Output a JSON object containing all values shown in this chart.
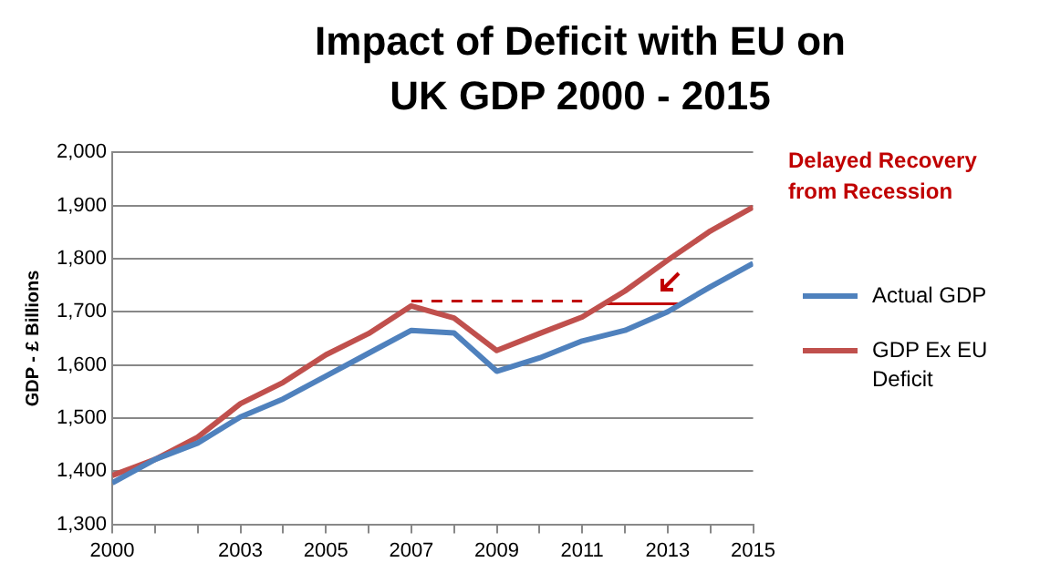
{
  "chart_data": {
    "type": "line",
    "title": "Impact of Deficit with EU on UK GDP 2000 - 2015",
    "ylabel": "GDP - £ Billions",
    "x": [
      2000,
      2001,
      2002,
      2003,
      2004,
      2005,
      2006,
      2007,
      2008,
      2009,
      2010,
      2011,
      2012,
      2013,
      2014,
      2015
    ],
    "series": [
      {
        "name": "Actual GDP",
        "color": "#4f81bd",
        "values": [
          1378,
          1422,
          1453,
          1502,
          1536,
          1579,
          1622,
          1665,
          1660,
          1588,
          1613,
          1645,
          1665,
          1700,
          1747,
          1791
        ]
      },
      {
        "name": "GDP Ex EU Deficit",
        "color": "#c0504d",
        "values": [
          1392,
          1422,
          1464,
          1527,
          1567,
          1619,
          1659,
          1711,
          1688,
          1627,
          1659,
          1690,
          1739,
          1797,
          1852,
          1897
        ]
      },
      {
        "color": "#c00000",
        "x": [
          2007,
          2011
        ],
        "values": [
          1720,
          1720
        ],
        "line_style": "dashed"
      },
      {
        "color": "#c00000",
        "x": [
          2011.5,
          2013.3
        ],
        "values": [
          1715,
          1715
        ],
        "line_style": "solid"
      }
    ],
    "xlim": [
      2000,
      2015
    ],
    "xticks": [
      2000,
      {
        "value": 2001,
        "label": null
      },
      {
        "value": 2002,
        "label": null
      },
      2003,
      {
        "value": 2004,
        "label": null
      },
      2005,
      {
        "value": 2006,
        "label": null
      },
      2007,
      {
        "value": 2008,
        "label": null
      },
      2009,
      {
        "value": 2010,
        "label": null
      },
      2011,
      {
        "value": 2012,
        "label": null
      },
      2013,
      {
        "value": 2014,
        "label": null
      },
      2015
    ],
    "ylim": [
      1300,
      2000
    ],
    "yticks": [
      {
        "value": 1300,
        "label": "1,300"
      },
      {
        "value": 1400,
        "label": "1,400"
      },
      {
        "value": 1500,
        "label": "1,500"
      },
      {
        "value": 1600,
        "label": "1,600"
      },
      {
        "value": 1700,
        "label": "1,700"
      },
      {
        "value": 1800,
        "label": "1,800"
      },
      {
        "value": 1900,
        "label": "1,900"
      },
      {
        "value": 2000,
        "label": "2,000"
      }
    ],
    "grid": "y",
    "legend": "right",
    "marker": "none",
    "annotations": [
      "Delayed Recovery from Recession"
    ]
  }
}
